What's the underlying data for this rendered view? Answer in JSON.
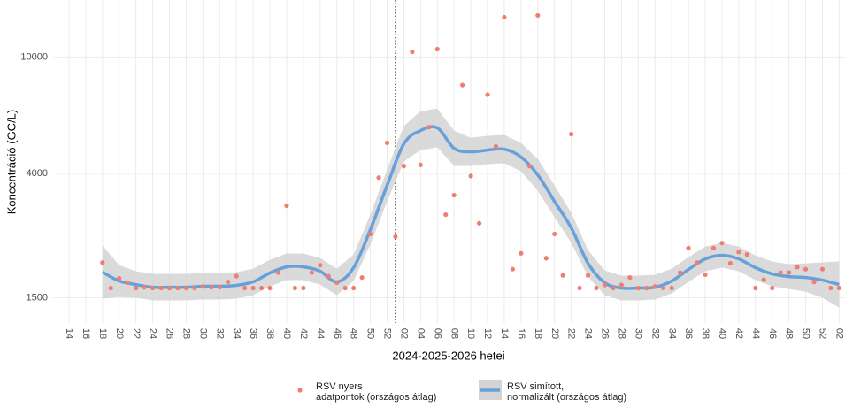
{
  "chart_data": {
    "type": "scatter",
    "x_label": "2024-2025-2026 hetei",
    "y_label": "Koncentráció (GC/L)",
    "xlim": [
      12.1,
      106.7
    ],
    "ylim": [
      1230,
      15700
    ],
    "log_y": true,
    "grid": true,
    "legend": "bottom",
    "vline_x": 53,
    "xticks": [
      14,
      16,
      18,
      20,
      22,
      24,
      26,
      28,
      30,
      32,
      34,
      36,
      38,
      40,
      42,
      44,
      46,
      48,
      50,
      52,
      {
        "value": 54,
        "label": "02"
      },
      {
        "value": 56,
        "label": "04"
      },
      {
        "value": 58,
        "label": "06"
      },
      {
        "value": 60,
        "label": "08"
      },
      {
        "value": 62,
        "label": "10"
      },
      {
        "value": 64,
        "label": "12"
      },
      {
        "value": 66,
        "label": "14"
      },
      {
        "value": 68,
        "label": "16"
      },
      {
        "value": 70,
        "label": "18"
      },
      {
        "value": 72,
        "label": "20"
      },
      {
        "value": 74,
        "label": "22"
      },
      {
        "value": 76,
        "label": "24"
      },
      {
        "value": 78,
        "label": "26"
      },
      {
        "value": 80,
        "label": "28"
      },
      {
        "value": 82,
        "label": "30"
      },
      {
        "value": 84,
        "label": "32"
      },
      {
        "value": 86,
        "label": "34"
      },
      {
        "value": 88,
        "label": "36"
      },
      {
        "value": 90,
        "label": "38"
      },
      {
        "value": 92,
        "label": "40"
      },
      {
        "value": 94,
        "label": "42"
      },
      {
        "value": 96,
        "label": "44"
      },
      {
        "value": 98,
        "label": "46"
      },
      {
        "value": 100,
        "label": "48"
      },
      {
        "value": 102,
        "label": "50"
      },
      {
        "value": 104,
        "label": "52"
      },
      {
        "value": 106,
        "label": "02"
      }
    ],
    "yticks": [
      1500,
      4000,
      10000
    ],
    "series": [
      {
        "name": "RSV nyers\n adatpontok (országos átlag)",
        "type": "scatter",
        "color": "#f07d6e",
        "x": [
          18,
          19,
          20,
          21,
          22,
          23,
          24,
          25,
          26,
          27,
          28,
          29,
          30,
          31,
          32,
          33,
          34,
          35,
          36,
          37,
          38,
          39,
          40,
          41,
          42,
          43,
          44,
          45,
          46,
          47,
          48,
          49,
          50,
          51,
          52,
          53,
          54,
          55,
          56,
          57,
          58,
          59,
          60,
          61,
          62,
          63,
          64,
          65,
          66,
          67,
          68,
          69,
          70,
          71,
          72,
          73,
          74,
          75,
          76,
          77,
          78,
          79,
          80,
          81,
          82,
          83,
          84,
          85,
          86,
          87,
          88,
          89,
          90,
          91,
          92,
          93,
          94,
          95,
          96,
          97,
          98,
          99,
          100,
          101,
          102,
          103,
          104,
          105,
          106
        ],
        "values": [
          1980,
          1620,
          1750,
          1690,
          1620,
          1630,
          1620,
          1620,
          1620,
          1620,
          1620,
          1620,
          1640,
          1630,
          1630,
          1700,
          1780,
          1620,
          1620,
          1620,
          1620,
          1830,
          3100,
          1620,
          1620,
          1830,
          1940,
          1780,
          1690,
          1620,
          1620,
          1760,
          2480,
          3870,
          5090,
          2430,
          4240,
          10430,
          4280,
          5760,
          10660,
          2890,
          3370,
          8030,
          3920,
          2700,
          7440,
          4950,
          13700,
          1880,
          2130,
          4240,
          13900,
          2050,
          2480,
          1790,
          5450,
          1620,
          1790,
          1620,
          1660,
          1620,
          1660,
          1760,
          1620,
          1620,
          1640,
          1620,
          1620,
          1830,
          2220,
          1980,
          1800,
          2220,
          2310,
          1970,
          2150,
          2110,
          1620,
          1730,
          1620,
          1830,
          1830,
          1910,
          1880,
          1700,
          1880,
          1620,
          1620
        ]
      },
      {
        "name": "RSV simított,\n normalizált (országos átlag)",
        "type": "line",
        "color": "#67a1dc",
        "band_color": "#d4d4d4",
        "x": [
          18,
          20,
          22,
          24,
          26,
          28,
          30,
          32,
          34,
          36,
          38,
          40,
          42,
          44,
          46,
          48,
          50,
          52,
          54,
          56,
          58,
          60,
          62,
          64,
          66,
          68,
          70,
          72,
          74,
          76,
          78,
          80,
          82,
          84,
          86,
          88,
          90,
          92,
          94,
          96,
          98,
          100,
          102,
          104,
          106
        ],
        "values": [
          1836,
          1713,
          1665,
          1630,
          1630,
          1630,
          1643,
          1643,
          1655,
          1701,
          1824,
          1914,
          1914,
          1850,
          1701,
          1902,
          2567,
          3639,
          5051,
          5608,
          5728,
          4877,
          4743,
          4809,
          4842,
          4551,
          3954,
          3207,
          2603,
          1969,
          1689,
          1620,
          1620,
          1630,
          1713,
          1875,
          2038,
          2096,
          2038,
          1902,
          1811,
          1773,
          1761,
          1725,
          1665
        ],
        "lower": [
          1490,
          1510,
          1500,
          1469,
          1469,
          1469,
          1480,
          1480,
          1490,
          1531,
          1642,
          1725,
          1725,
          1665,
          1531,
          1713,
          2280,
          3207,
          4393,
          4809,
          4912,
          4243,
          4243,
          4303,
          4333,
          4067,
          3489,
          2830,
          2312,
          1773,
          1531,
          1469,
          1469,
          1480,
          1553,
          1701,
          1850,
          1902,
          1850,
          1725,
          1642,
          1608,
          1575,
          1500,
          1389
        ],
        "upper": [
          2265,
          1941,
          1850,
          1811,
          1811,
          1811,
          1824,
          1824,
          1836,
          1888,
          2024,
          2127,
          2127,
          2052,
          1888,
          2111,
          2891,
          4125,
          5807,
          6536,
          6669,
          5608,
          5298,
          5378,
          5416,
          5085,
          4488,
          3639,
          2931,
          2185,
          1861,
          1786,
          1786,
          1798,
          1888,
          2067,
          2248,
          2312,
          2248,
          2096,
          1997,
          1957,
          1969,
          1983,
          1997
        ]
      }
    ]
  }
}
